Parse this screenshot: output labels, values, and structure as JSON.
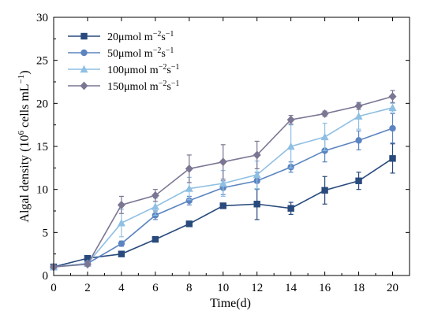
{
  "chart_data": {
    "type": "line",
    "xlabel": "Time(d)",
    "ylabel": "Algal density (10",
    "ylabel_sup1": "6",
    "ylabel_mid": " cells mL",
    "ylabel_sup2": "−1",
    "ylabel_end": ")",
    "xlim": [
      0,
      21
    ],
    "ylim": [
      0,
      30
    ],
    "x_ticks": [
      "0",
      "2",
      "4",
      "6",
      "8",
      "10",
      "12",
      "14",
      "16",
      "18",
      "20"
    ],
    "y_ticks": [
      "0",
      "5",
      "10",
      "15",
      "20",
      "25",
      "30"
    ],
    "legend_position": "top-left",
    "grid": false,
    "x": [
      0,
      2,
      4,
      6,
      8,
      10,
      12,
      14,
      16,
      18,
      20
    ],
    "series": [
      {
        "name": "20μmol m",
        "name_sup1": "−2",
        "name_mid": "s",
        "name_sup2": "−1",
        "color": "#284a7c",
        "marker": "square",
        "values": [
          1.0,
          2.0,
          2.5,
          4.2,
          6.0,
          8.1,
          8.3,
          7.8,
          9.9,
          11.0,
          13.6
        ],
        "errors": [
          0.0,
          0.1,
          0.2,
          0.3,
          0.2,
          0.3,
          1.8,
          0.7,
          1.6,
          1.0,
          1.7
        ]
      },
      {
        "name": "50μmol m",
        "name_sup1": "−2",
        "name_mid": "s",
        "name_sup2": "−1",
        "color": "#5b84c0",
        "marker": "circle",
        "values": [
          1.0,
          1.4,
          3.7,
          7.0,
          8.7,
          10.2,
          11.0,
          12.6,
          14.5,
          15.7,
          17.1
        ],
        "errors": [
          0.0,
          0.1,
          0.3,
          0.5,
          0.5,
          0.8,
          1.0,
          0.6,
          1.3,
          1.1,
          1.7
        ]
      },
      {
        "name": "100μmol m",
        "name_sup1": "−2",
        "name_mid": "s",
        "name_sup2": "−1",
        "color": "#8fbfe3",
        "marker": "triangle",
        "values": [
          1.0,
          1.4,
          6.1,
          8.0,
          10.1,
          10.7,
          11.7,
          15.0,
          16.1,
          18.5,
          19.5
        ],
        "errors": [
          0.0,
          0.1,
          1.6,
          1.0,
          1.3,
          1.5,
          1.6,
          2.5,
          1.6,
          1.5,
          0.5
        ]
      },
      {
        "name": "150μmol m",
        "name_sup1": "−2",
        "name_mid": "s",
        "name_sup2": "−1",
        "color": "#7b7693",
        "marker": "diamond",
        "values": [
          1.0,
          1.3,
          8.2,
          9.3,
          12.4,
          13.2,
          14.0,
          18.1,
          18.8,
          19.7,
          20.8
        ],
        "errors": [
          0.0,
          0.1,
          1.0,
          0.7,
          1.6,
          2.0,
          1.6,
          0.5,
          0.3,
          0.4,
          0.7
        ]
      }
    ]
  }
}
